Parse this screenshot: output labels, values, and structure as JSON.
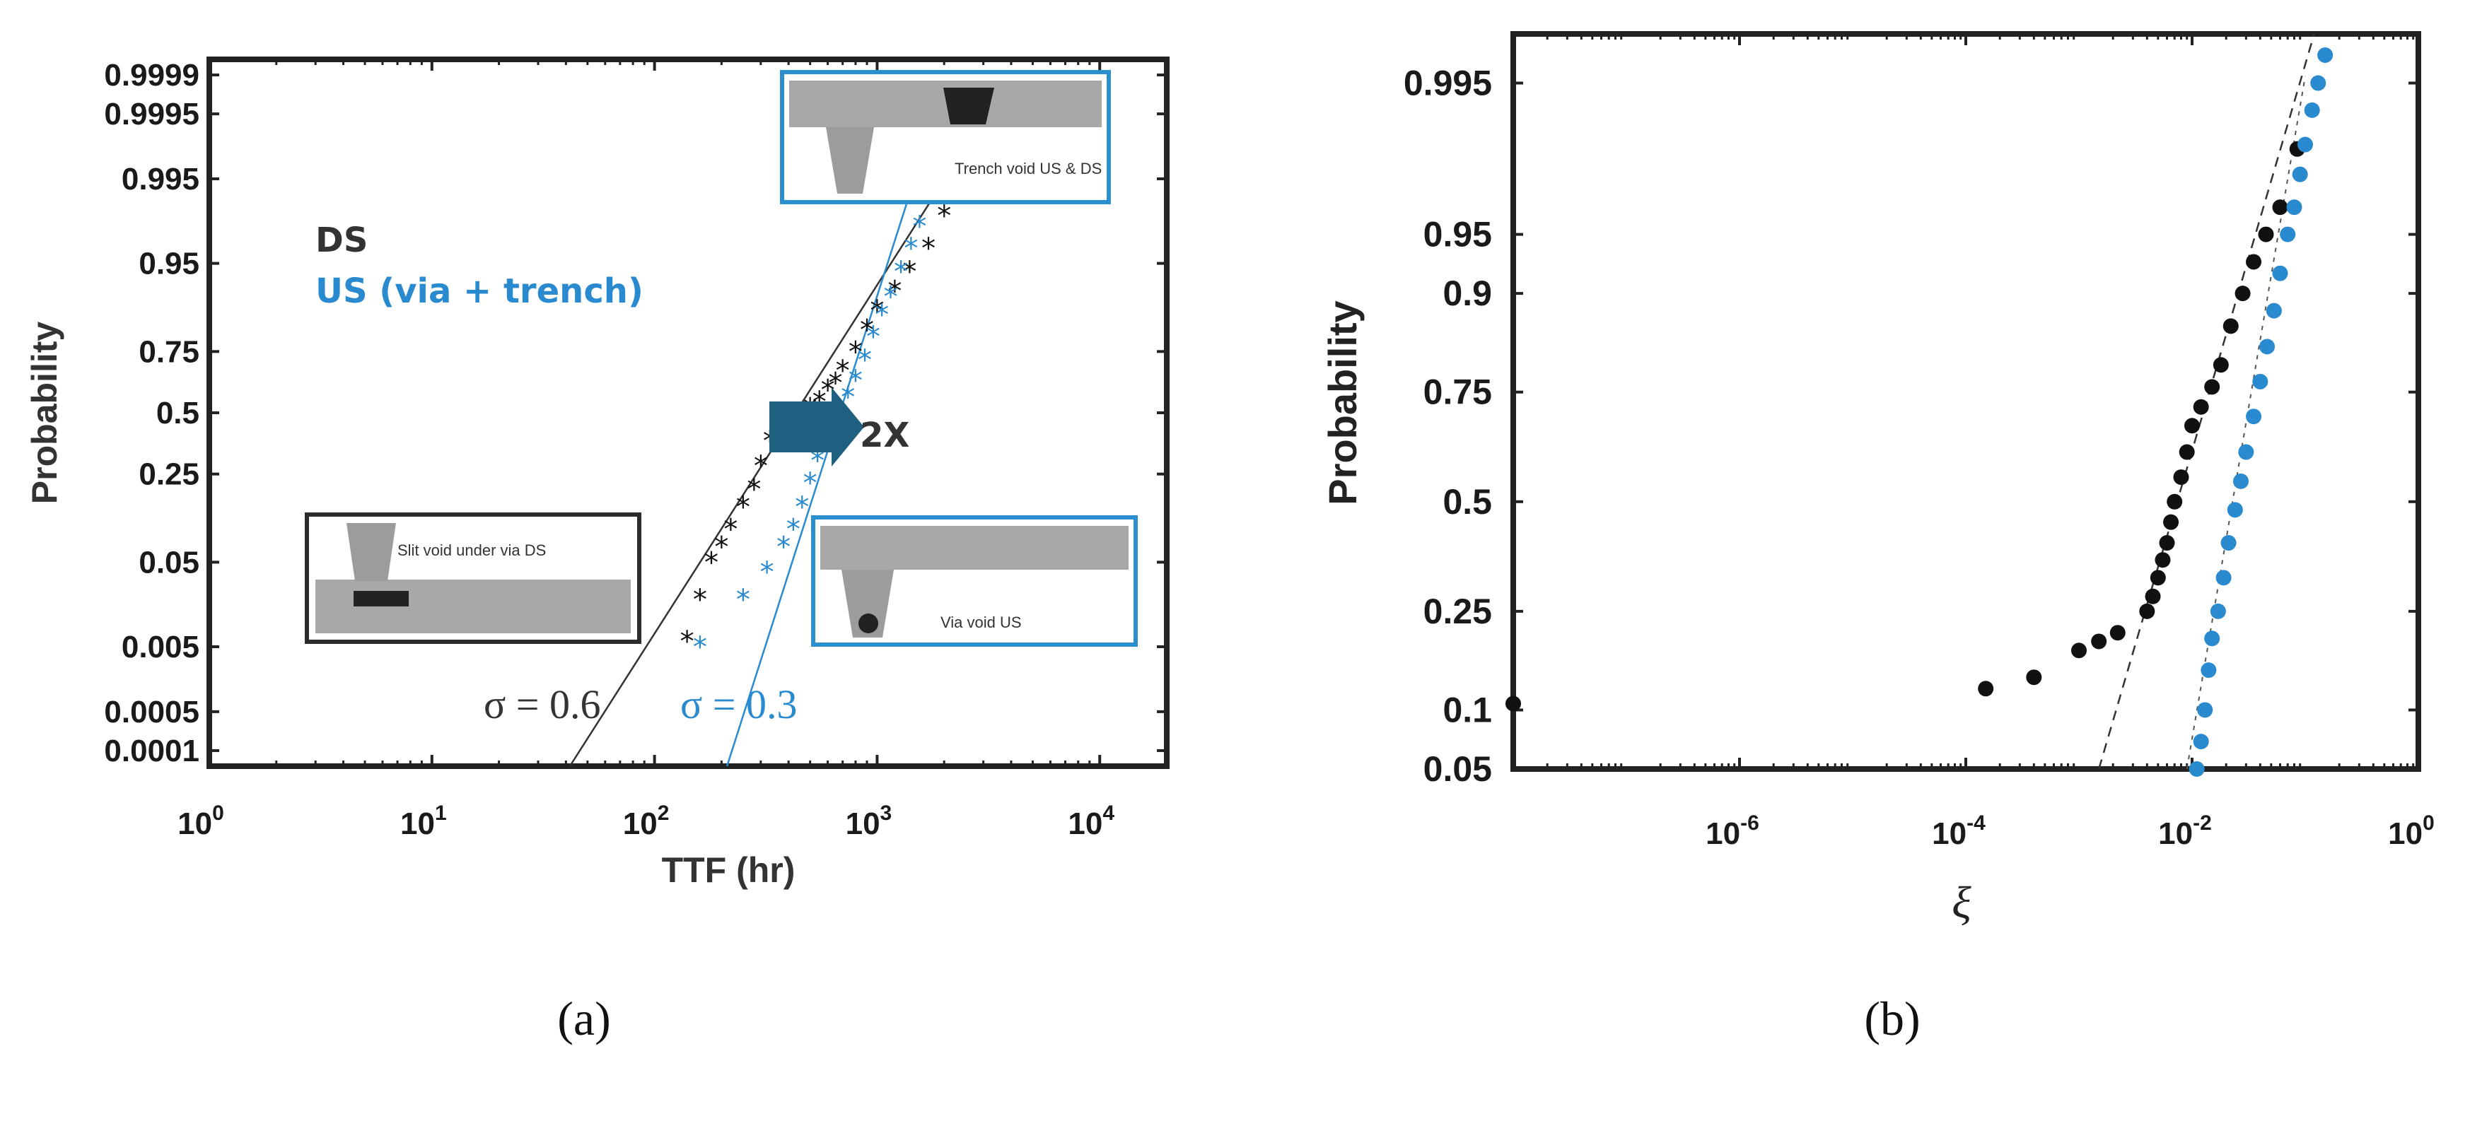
{
  "colors": {
    "ds": "#111111",
    "us": "#2a8ad0",
    "inset_border_ds": "#2b2b2b",
    "inset_border_us": "#2b8fcf",
    "arrow": "#1f5f7f"
  },
  "panel_a": {
    "label": "(a)",
    "xlabel": "TTF (hr)",
    "ylabel": "Probability",
    "xtick_base": "10",
    "xtick_exps": [
      "0",
      "1",
      "2",
      "3",
      "4"
    ],
    "yticks": [
      "0.0001",
      "0.0005",
      "0.005",
      "0.05",
      "0.25",
      "0.5",
      "0.75",
      "0.95",
      "0.995",
      "0.9995",
      "0.9999"
    ],
    "legend": [
      "DS",
      "US (via + trench)"
    ],
    "sigma_ds": "σ = 0.6",
    "sigma_us": "σ = 0.3",
    "arrow_label": "2X",
    "inset_ds": "Slit void under via DS",
    "inset_us": "Via void US",
    "inset_trench": "Trench void US & DS"
  },
  "panel_b": {
    "label": "(b)",
    "xlabel": "ξ",
    "ylabel": "Probability",
    "xtick_base": "10",
    "xtick_exps": [
      "-6",
      "-4",
      "-2",
      "0"
    ],
    "yticks": [
      "0.05",
      "0.1",
      "0.25",
      "0.5",
      "0.75",
      "0.9",
      "0.95",
      "0.995"
    ]
  },
  "chart_data": [
    {
      "type": "scatter",
      "xscale": "log",
      "yscale": "lognormal probability",
      "xlabel": "TTF (hr)",
      "ylabel": "Probability",
      "xlim": [
        1,
        20000
      ],
      "series": [
        {
          "name": "DS",
          "marker": "asterisk",
          "points": [
            [
              140,
              0.006
            ],
            [
              160,
              0.02
            ],
            [
              180,
              0.05
            ],
            [
              200,
              0.07
            ],
            [
              220,
              0.1
            ],
            [
              250,
              0.15
            ],
            [
              280,
              0.2
            ],
            [
              300,
              0.28
            ],
            [
              330,
              0.38
            ],
            [
              360,
              0.45
            ],
            [
              400,
              0.48
            ],
            [
              450,
              0.5
            ],
            [
              500,
              0.52
            ],
            [
              550,
              0.55
            ],
            [
              600,
              0.6
            ],
            [
              650,
              0.63
            ],
            [
              700,
              0.68
            ],
            [
              800,
              0.75
            ],
            [
              900,
              0.82
            ],
            [
              1000,
              0.87
            ],
            [
              1200,
              0.91
            ],
            [
              1400,
              0.94
            ],
            [
              1700,
              0.965
            ],
            [
              2000,
              0.985
            ],
            [
              2400,
              0.994
            ]
          ]
        },
        {
          "name": "US (via + trench)",
          "marker": "asterisk",
          "points": [
            [
              160,
              0.005
            ],
            [
              250,
              0.02
            ],
            [
              320,
              0.04
            ],
            [
              380,
              0.07
            ],
            [
              420,
              0.1
            ],
            [
              460,
              0.15
            ],
            [
              500,
              0.22
            ],
            [
              540,
              0.3
            ],
            [
              580,
              0.38
            ],
            [
              630,
              0.45
            ],
            [
              680,
              0.5
            ],
            [
              740,
              0.57
            ],
            [
              800,
              0.64
            ],
            [
              880,
              0.72
            ],
            [
              960,
              0.8
            ],
            [
              1050,
              0.86
            ],
            [
              1150,
              0.9
            ],
            [
              1280,
              0.94
            ],
            [
              1420,
              0.965
            ],
            [
              1550,
              0.98
            ],
            [
              1700,
              0.99
            ],
            [
              1850,
              0.995
            ],
            [
              2000,
              0.997
            ],
            [
              2200,
              0.9985
            ]
          ]
        }
      ],
      "fit_lines": [
        {
          "name": "DS",
          "sigma": 0.6
        },
        {
          "name": "US (via + trench)",
          "sigma": 0.3
        }
      ]
    },
    {
      "type": "scatter",
      "xscale": "log",
      "yscale": "lognormal probability",
      "xlabel": "ξ",
      "ylabel": "Probability",
      "xlim": [
        1e-08,
        1
      ],
      "series": [
        {
          "name": "",
          "color": "black",
          "points": [
            [
              1e-08,
              0.107
            ],
            [
              0.00015,
              0.125
            ],
            [
              0.0004,
              0.14
            ],
            [
              0.001,
              0.18
            ],
            [
              0.0015,
              0.195
            ],
            [
              0.0022,
              0.21
            ],
            [
              0.004,
              0.25
            ],
            [
              0.0045,
              0.28
            ],
            [
              0.005,
              0.32
            ],
            [
              0.0055,
              0.36
            ],
            [
              0.006,
              0.4
            ],
            [
              0.0065,
              0.45
            ],
            [
              0.007,
              0.5
            ],
            [
              0.008,
              0.56
            ],
            [
              0.009,
              0.62
            ],
            [
              0.01,
              0.68
            ],
            [
              0.012,
              0.72
            ],
            [
              0.015,
              0.76
            ],
            [
              0.018,
              0.8
            ],
            [
              0.022,
              0.86
            ],
            [
              0.028,
              0.9
            ],
            [
              0.035,
              0.93
            ],
            [
              0.045,
              0.95
            ],
            [
              0.06,
              0.965
            ],
            [
              0.085,
              0.985
            ]
          ]
        },
        {
          "name": "",
          "color": "blue",
          "points": [
            [
              0.011,
              0.05
            ],
            [
              0.012,
              0.07
            ],
            [
              0.013,
              0.1
            ],
            [
              0.014,
              0.15
            ],
            [
              0.015,
              0.2
            ],
            [
              0.017,
              0.25
            ],
            [
              0.019,
              0.32
            ],
            [
              0.021,
              0.4
            ],
            [
              0.024,
              0.48
            ],
            [
              0.027,
              0.55
            ],
            [
              0.03,
              0.62
            ],
            [
              0.035,
              0.7
            ],
            [
              0.04,
              0.77
            ],
            [
              0.046,
              0.83
            ],
            [
              0.053,
              0.88
            ],
            [
              0.06,
              0.92
            ],
            [
              0.07,
              0.95
            ],
            [
              0.08,
              0.965
            ],
            [
              0.09,
              0.978
            ],
            [
              0.1,
              0.986
            ],
            [
              0.115,
              0.992
            ],
            [
              0.13,
              0.995
            ],
            [
              0.15,
              0.997
            ]
          ]
        }
      ],
      "fit_lines": [
        {
          "style": "dashed"
        }
      ]
    }
  ]
}
